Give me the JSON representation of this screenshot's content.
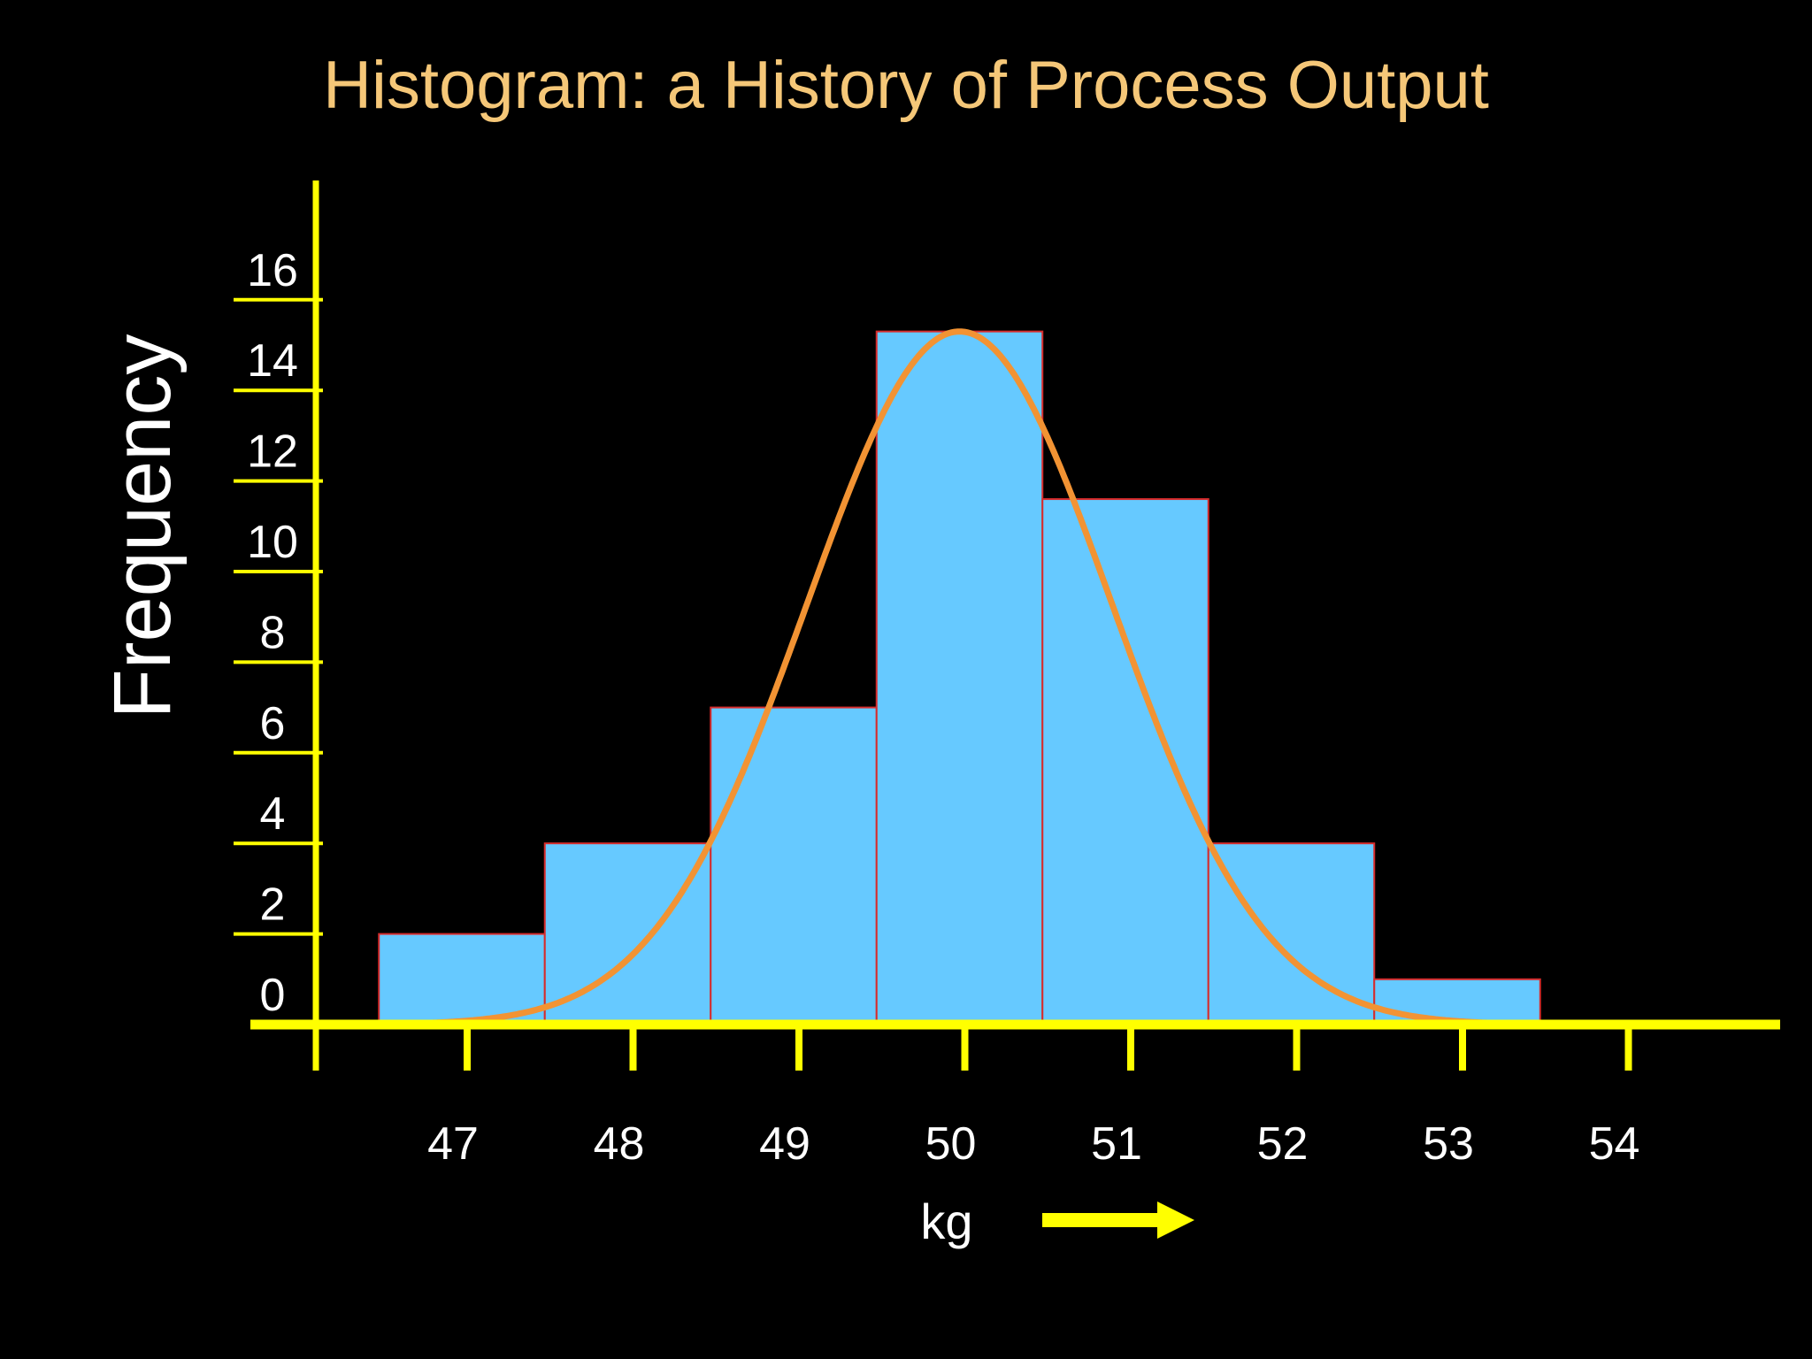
{
  "colors": {
    "background": "#000000",
    "title": "#f5c778",
    "axis": "#ffff00",
    "bar_fill": "#66c9ff",
    "bar_stroke": "#d62b2b",
    "curve": "#f29333",
    "text": "#ffffff"
  },
  "chart_data": {
    "type": "bar",
    "title": "Histogram:  a History of Process Output",
    "ylabel": "Frequency",
    "xlabel": "kg",
    "x_ticks": [
      "47",
      "48",
      "49",
      "50",
      "51",
      "52",
      "53",
      "54"
    ],
    "y_ticks": [
      "0",
      "2",
      "4",
      "6",
      "8",
      "10",
      "12",
      "14",
      "16"
    ],
    "ylim": [
      0,
      18
    ],
    "categories": [
      "47",
      "48",
      "49",
      "50",
      "51",
      "52",
      "53"
    ],
    "values": [
      2,
      4,
      7,
      15.3,
      11.6,
      4,
      1
    ],
    "overlay": {
      "type": "normal-curve",
      "mean": 50,
      "peak": 15.3
    },
    "grid": false,
    "legend": "none",
    "x_arrow": "right-arrow-icon"
  }
}
